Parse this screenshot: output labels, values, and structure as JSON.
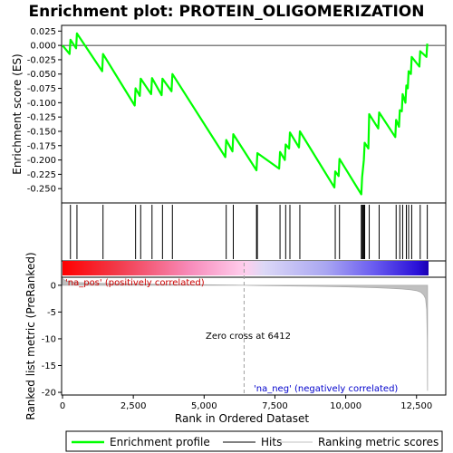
{
  "chart_data": {
    "type": "line",
    "title": "Enrichment plot: PROTEIN_OLIGOMERIZATION",
    "xlabel": "Rank in Ordered Dataset",
    "ylabel_top": "Enrichment score (ES)",
    "ylabel_bottom": "Ranked list metric (PreRanked)",
    "x_range": [
      0,
      13500
    ],
    "x_ticks": [
      0,
      2500,
      5000,
      7500,
      10000,
      12500
    ],
    "x_tick_labels": [
      "0",
      "2,500",
      "5,000",
      "7,500",
      "10,000",
      "12,500"
    ],
    "es_ylim": [
      -0.275,
      0.035
    ],
    "es_ticks": [
      0.025,
      0.0,
      -0.025,
      -0.05,
      -0.075,
      -0.1,
      -0.125,
      -0.15,
      -0.175,
      -0.2,
      -0.225,
      -0.25
    ],
    "es_tick_labels": [
      "0.025",
      "0.000",
      "-0.025",
      "-0.050",
      "-0.075",
      "-0.100",
      "-0.125",
      "-0.150",
      "-0.175",
      "-0.200",
      "-0.225",
      "-0.250"
    ],
    "metric_ylim": [
      -20.5,
      1.5
    ],
    "metric_ticks": [
      0,
      -5,
      -10,
      -15,
      -20
    ],
    "metric_tick_labels": [
      "0",
      "-5",
      "-10",
      "-15",
      "-20"
    ],
    "grid": false,
    "colors": {
      "es_line": "#00ff00",
      "hits": "#000000",
      "metric": "#c0c0c0",
      "pos_label": "#cc0000",
      "neg_label": "#0000cc",
      "zero_cross": "#a0a0a0"
    },
    "series": [
      {
        "name": "Enrichment profile",
        "x": [
          0,
          250,
          280,
          480,
          510,
          1400,
          1430,
          2550,
          2580,
          2730,
          2760,
          3130,
          3160,
          3500,
          3530,
          3850,
          3880,
          5750,
          5780,
          6000,
          6030,
          6850,
          6880,
          7650,
          7680,
          7850,
          7880,
          8000,
          8030,
          8350,
          8380,
          9600,
          9630,
          9750,
          9780,
          10550,
          10580,
          10640,
          10670,
          10800,
          10830,
          11150,
          11180,
          11750,
          11780,
          11880,
          11910,
          11980,
          12010,
          12110,
          12140,
          12190,
          12220,
          12300,
          12330,
          12600,
          12630,
          12850,
          12880
        ],
        "y": [
          0.0,
          -0.015,
          0.01,
          -0.005,
          0.021,
          -0.045,
          -0.015,
          -0.105,
          -0.075,
          -0.088,
          -0.058,
          -0.085,
          -0.057,
          -0.087,
          -0.058,
          -0.08,
          -0.05,
          -0.195,
          -0.165,
          -0.185,
          -0.155,
          -0.218,
          -0.188,
          -0.215,
          -0.186,
          -0.2,
          -0.173,
          -0.18,
          -0.152,
          -0.178,
          -0.15,
          -0.248,
          -0.22,
          -0.228,
          -0.198,
          -0.26,
          -0.23,
          -0.2,
          -0.17,
          -0.18,
          -0.12,
          -0.145,
          -0.117,
          -0.16,
          -0.13,
          -0.142,
          -0.113,
          -0.115,
          -0.085,
          -0.1,
          -0.07,
          -0.075,
          -0.045,
          -0.05,
          -0.02,
          -0.037,
          -0.01,
          -0.02,
          0.003
        ]
      },
      {
        "name": "Hits",
        "positions": [
          280,
          510,
          1430,
          2580,
          2760,
          3160,
          3530,
          3880,
          5780,
          6030,
          6850,
          6880,
          7680,
          7880,
          8030,
          8380,
          9630,
          9780,
          10550,
          10580,
          10610,
          10640,
          10670,
          10830,
          11180,
          11780,
          11910,
          12010,
          12140,
          12220,
          12330,
          12630,
          12880
        ]
      },
      {
        "name": "Ranking metric scores",
        "x": [
          0,
          60,
          150,
          300,
          600,
          1000,
          2000,
          3000,
          4000,
          5000,
          6000,
          6412,
          7000,
          8000,
          9000,
          10000,
          11000,
          11500,
          12000,
          12300,
          12500,
          12650,
          12750,
          12820,
          12860,
          12880,
          12890
        ],
        "y": [
          1.3,
          1.0,
          0.8,
          0.65,
          0.5,
          0.4,
          0.28,
          0.2,
          0.14,
          0.09,
          0.03,
          0.0,
          -0.05,
          -0.12,
          -0.2,
          -0.3,
          -0.45,
          -0.55,
          -0.7,
          -0.85,
          -1.0,
          -1.3,
          -1.8,
          -2.5,
          -4.5,
          -10.0,
          -19.7
        ]
      }
    ],
    "annotations": {
      "pos_label": "'na_pos' (positively correlated)",
      "neg_label": "'na_neg' (negatively correlated)",
      "zero_cross_label": "Zero cross at 6412",
      "zero_cross_rank": 6412
    },
    "legend": {
      "placement": "bottom",
      "entries": [
        "Enrichment profile",
        "Hits",
        "Ranking metric scores"
      ]
    }
  }
}
